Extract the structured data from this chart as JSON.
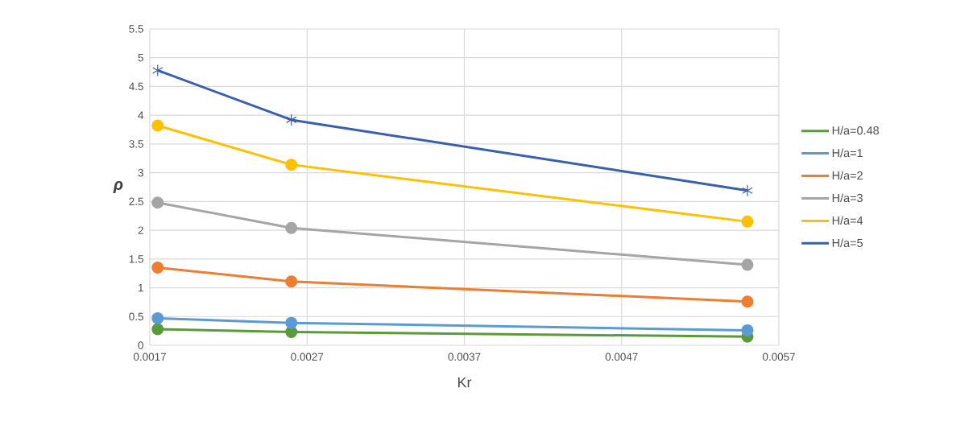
{
  "chart_data": {
    "type": "line",
    "xlabel": "Kr",
    "ylabel": "ρ",
    "x": [
      0.00175,
      0.0026,
      0.0055
    ],
    "series": [
      {
        "name": "H/a=0.48",
        "color": "#5b9a3a",
        "marker": "circle",
        "values": [
          0.28,
          0.23,
          0.15
        ]
      },
      {
        "name": "H/a=1",
        "color": "#5b9bd5",
        "marker": "circle",
        "values": [
          0.47,
          0.39,
          0.26
        ]
      },
      {
        "name": "H/a=2",
        "color": "#ed7d31",
        "marker": "circle",
        "values": [
          1.35,
          1.11,
          0.76
        ]
      },
      {
        "name": "H/a=3",
        "color": "#a5a5a5",
        "marker": "circle",
        "values": [
          2.48,
          2.04,
          1.4
        ]
      },
      {
        "name": "H/a=4",
        "color": "#ffc000",
        "marker": "circle",
        "values": [
          3.82,
          3.14,
          2.15
        ]
      },
      {
        "name": "H/a=5",
        "color": "#3a5fab",
        "marker": "cross",
        "values": [
          4.78,
          3.92,
          2.69
        ]
      }
    ],
    "xlim": [
      0.0017,
      0.0057
    ],
    "xticks": [
      0.0017,
      0.0027,
      0.0037,
      0.0047,
      0.0057
    ],
    "ylim": [
      0,
      5.5
    ],
    "yticks": [
      0,
      0.5,
      1,
      1.5,
      2,
      2.5,
      3,
      3.5,
      4,
      4.5,
      5,
      5.5
    ],
    "grid": true,
    "legend": "right"
  }
}
